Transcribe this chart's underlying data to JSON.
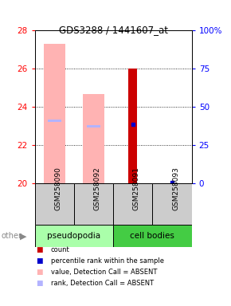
{
  "title": "GDS3288 / 1441607_at",
  "samples": [
    "GSM258090",
    "GSM258092",
    "GSM258091",
    "GSM258093"
  ],
  "ylim_left": [
    20,
    28
  ],
  "yticks_left": [
    20,
    22,
    24,
    26,
    28
  ],
  "yticks_right": [
    20,
    22,
    24,
    26,
    28
  ],
  "yticklabels_right": [
    "0",
    "25",
    "50",
    "75",
    "100%"
  ],
  "value_absent": [
    27.3,
    24.7,
    null,
    null
  ],
  "rank_absent": [
    23.3,
    23.0,
    null,
    null
  ],
  "count_value": [
    null,
    null,
    26.0,
    null
  ],
  "percentile_value": [
    null,
    null,
    23.1,
    20.05
  ],
  "pink_color": "#ffb3b3",
  "lavender_color": "#b3b3ff",
  "red_color": "#cc0000",
  "blue_color": "#0000cc",
  "group_colors": [
    "#aaffaa",
    "#44cc44"
  ],
  "legend_items": [
    {
      "color": "#cc0000",
      "label": "count"
    },
    {
      "color": "#0000cc",
      "label": "percentile rank within the sample"
    },
    {
      "color": "#ffb3b3",
      "label": "value, Detection Call = ABSENT"
    },
    {
      "color": "#b3b3ff",
      "label": "rank, Detection Call = ABSENT"
    }
  ]
}
